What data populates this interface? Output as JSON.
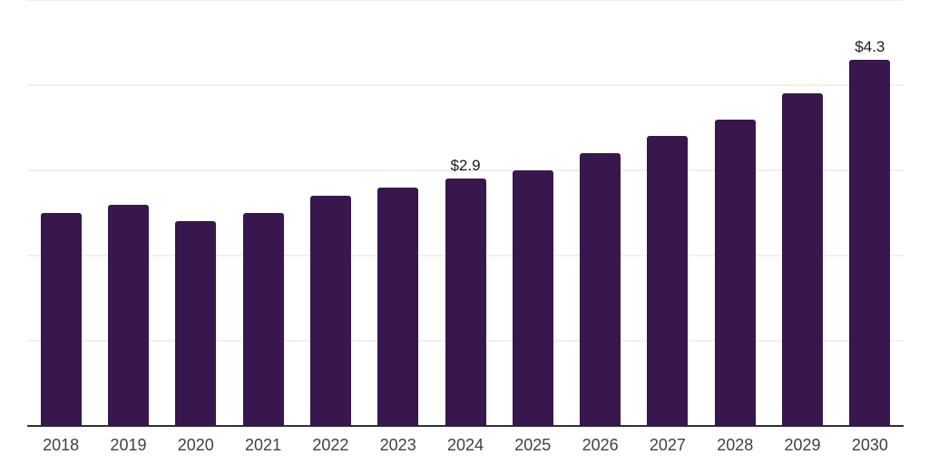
{
  "chart_data": {
    "type": "bar",
    "title": "",
    "xlabel": "",
    "ylabel": "",
    "categories": [
      "2018",
      "2019",
      "2020",
      "2021",
      "2022",
      "2023",
      "2024",
      "2025",
      "2026",
      "2027",
      "2028",
      "2029",
      "2030"
    ],
    "values": [
      2.5,
      2.6,
      2.4,
      2.5,
      2.7,
      2.8,
      2.9,
      3.0,
      3.2,
      3.4,
      3.6,
      3.9,
      4.3
    ],
    "point_labels": [
      "",
      "",
      "",
      "",
      "",
      "",
      "$2.9",
      "",
      "",
      "",
      "",
      "",
      "$4.3"
    ],
    "ylim": [
      0,
      5
    ],
    "gridline_values": [
      1,
      2,
      3,
      4,
      5
    ],
    "grid": "horizontal",
    "legend_position": "none",
    "colors": {
      "bar": "#38164E",
      "gridline": "#F1F1F1",
      "axis_line": "#332E3A",
      "tick_label": "#414141",
      "value_label": "#1A1A1A",
      "background": "#FFFFFF"
    }
  }
}
